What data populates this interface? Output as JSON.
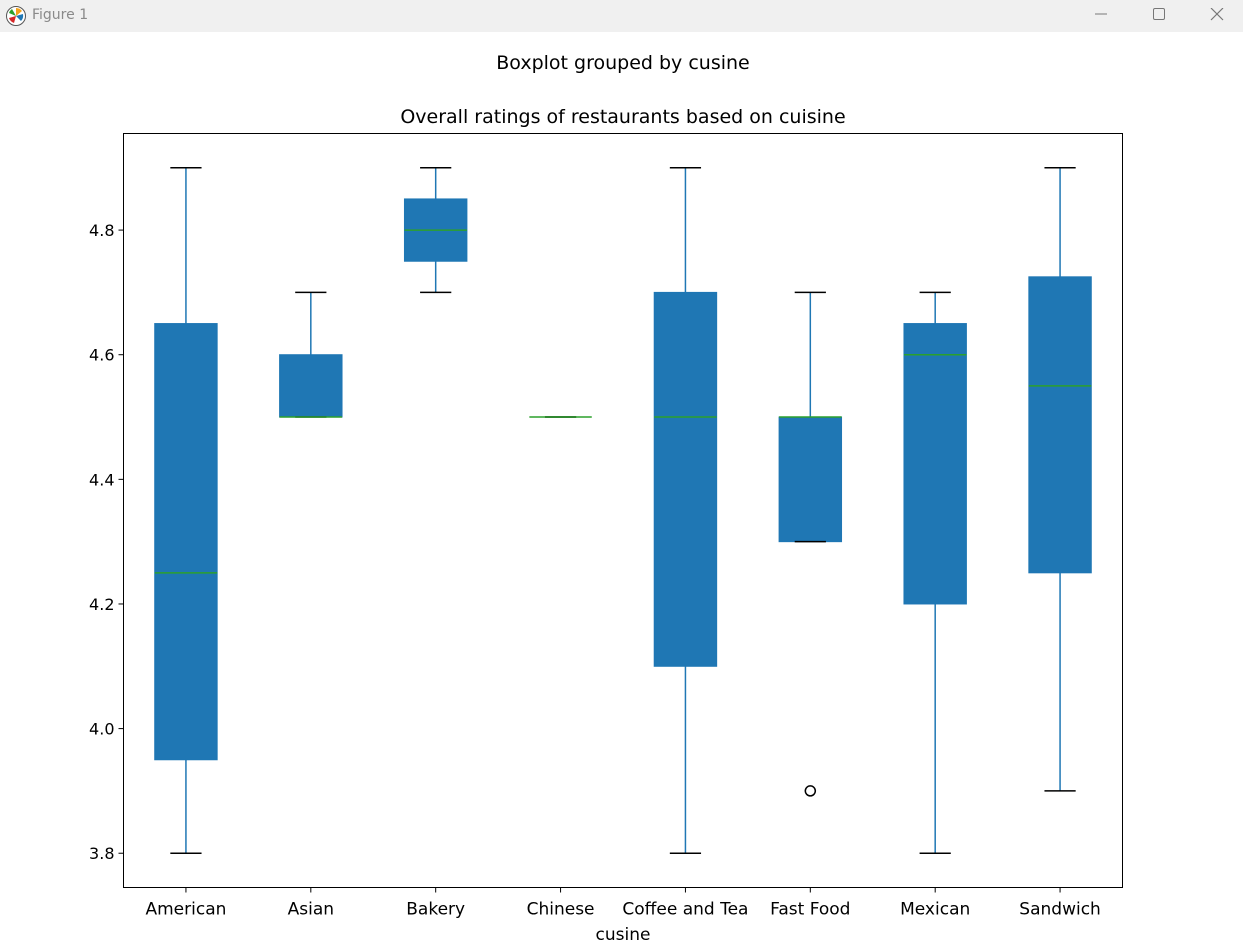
{
  "window": {
    "title": "Figure 1",
    "icons": {
      "app": "matplotlib-icon",
      "minimize": "minimize-icon",
      "maximize": "maximize-icon",
      "close": "close-icon"
    }
  },
  "chart_data": {
    "type": "boxplot",
    "suptitle": "Boxplot grouped by cusine",
    "title": "Overall ratings of restaurants based on cuisine",
    "xlabel": "cusine",
    "ylabel": "",
    "ylim": [
      3.745,
      4.955
    ],
    "yticks": [
      3.8,
      4.0,
      4.2,
      4.4,
      4.6,
      4.8
    ],
    "ytick_labels": [
      "3.8",
      "4.0",
      "4.2",
      "4.4",
      "4.6",
      "4.8"
    ],
    "grid": false,
    "colors": {
      "box": "#1f77b4",
      "median": "#2ca02c",
      "whisker": "#1f77b4",
      "cap": "#000000",
      "flier": "#000000"
    },
    "categories": [
      "American",
      "Asian",
      "Bakery",
      "Chinese",
      "Coffee and Tea",
      "Fast Food",
      "Mexican",
      "Sandwich"
    ],
    "boxes": [
      {
        "category": "American",
        "whisker_low": 3.8,
        "q1": 3.95,
        "median": 4.25,
        "q3": 4.65,
        "whisker_high": 4.9,
        "fliers": []
      },
      {
        "category": "Asian",
        "whisker_low": 4.5,
        "q1": 4.5,
        "median": 4.5,
        "q3": 4.6,
        "whisker_high": 4.7,
        "fliers": []
      },
      {
        "category": "Bakery",
        "whisker_low": 4.7,
        "q1": 4.75,
        "median": 4.8,
        "q3": 4.85,
        "whisker_high": 4.9,
        "fliers": []
      },
      {
        "category": "Chinese",
        "whisker_low": 4.5,
        "q1": 4.5,
        "median": 4.5,
        "q3": 4.5,
        "whisker_high": 4.5,
        "fliers": []
      },
      {
        "category": "Coffee and Tea",
        "whisker_low": 3.8,
        "q1": 4.1,
        "median": 4.5,
        "q3": 4.7,
        "whisker_high": 4.9,
        "fliers": []
      },
      {
        "category": "Fast Food",
        "whisker_low": 4.3,
        "q1": 4.3,
        "median": 4.5,
        "q3": 4.5,
        "whisker_high": 4.7,
        "fliers": [
          3.9
        ]
      },
      {
        "category": "Mexican",
        "whisker_low": 3.8,
        "q1": 4.2,
        "median": 4.6,
        "q3": 4.65,
        "whisker_high": 4.7,
        "fliers": []
      },
      {
        "category": "Sandwich",
        "whisker_low": 3.9,
        "q1": 4.25,
        "median": 4.55,
        "q3": 4.725,
        "whisker_high": 4.9,
        "fliers": []
      }
    ]
  }
}
